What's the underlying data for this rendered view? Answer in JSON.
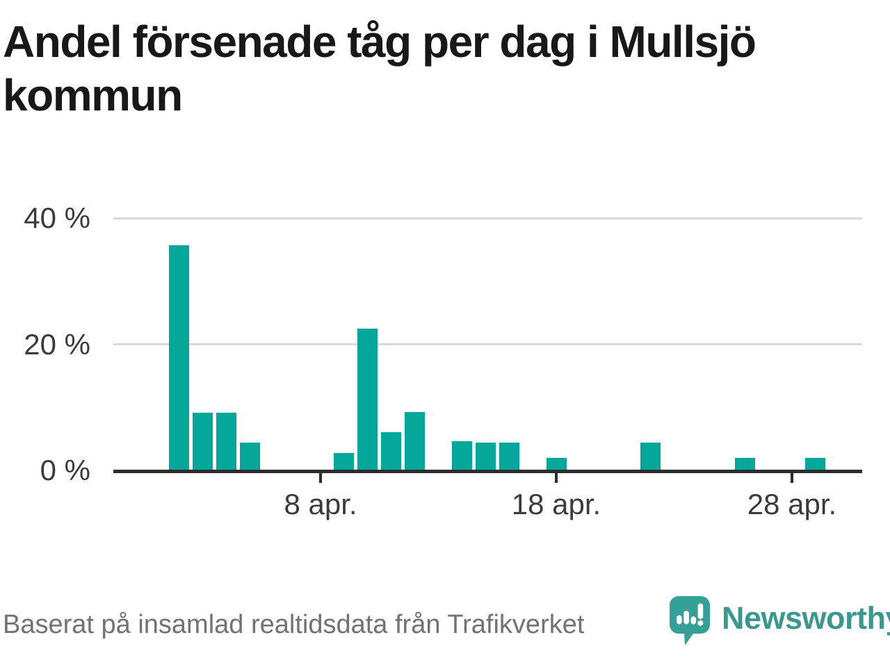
{
  "title": "Andel försenade tåg per dag i Mullsjö kommun",
  "chart_data": {
    "type": "bar",
    "title": "Andel försenade tåg per dag i Mullsjö kommun",
    "unit": "%",
    "categories": [
      "2 apr",
      "3 apr",
      "4 apr",
      "5 apr",
      "9 apr",
      "10 apr",
      "11 apr",
      "12 apr",
      "14 apr",
      "15 apr",
      "16 apr",
      "18 apr",
      "22 apr",
      "26 apr",
      "29 apr"
    ],
    "day_of_april": [
      2,
      3,
      4,
      5,
      9,
      10,
      11,
      12,
      14,
      15,
      16,
      18,
      22,
      26,
      29
    ],
    "values": [
      35.7,
      9.2,
      9.2,
      4.4,
      2.8,
      22.5,
      6.1,
      9.3,
      4.6,
      4.4,
      4.4,
      2.0,
      4.4,
      2.0,
      2.0
    ],
    "xlabel": "",
    "ylabel": "",
    "ylim": [
      0,
      43
    ],
    "yticks": [
      {
        "value": 0,
        "label": "0 %"
      },
      {
        "value": 20,
        "label": "20 %"
      },
      {
        "value": 40,
        "label": "40 %"
      }
    ],
    "xticks": [
      {
        "day": 8,
        "label": "8 apr."
      },
      {
        "day": 18,
        "label": "18 apr."
      },
      {
        "day": 28,
        "label": "28 apr."
      }
    ],
    "grid": "horizontal",
    "legend_position": "none",
    "bar_color": "#06a79b"
  },
  "footer": {
    "source_text": "Baserat på insamlad realtidsdata från Trafikverket",
    "brand_name": "Newsworthy"
  },
  "colors": {
    "bar": "#06a79b",
    "gridline": "#d9d9d9",
    "axis": "#2d2d2d",
    "title_text": "#181818",
    "axis_label_text": "#3a3b3d",
    "source_text": "#6f7276",
    "brand_teal": "#3b988f",
    "logo_icon_teal": "#35a096"
  }
}
